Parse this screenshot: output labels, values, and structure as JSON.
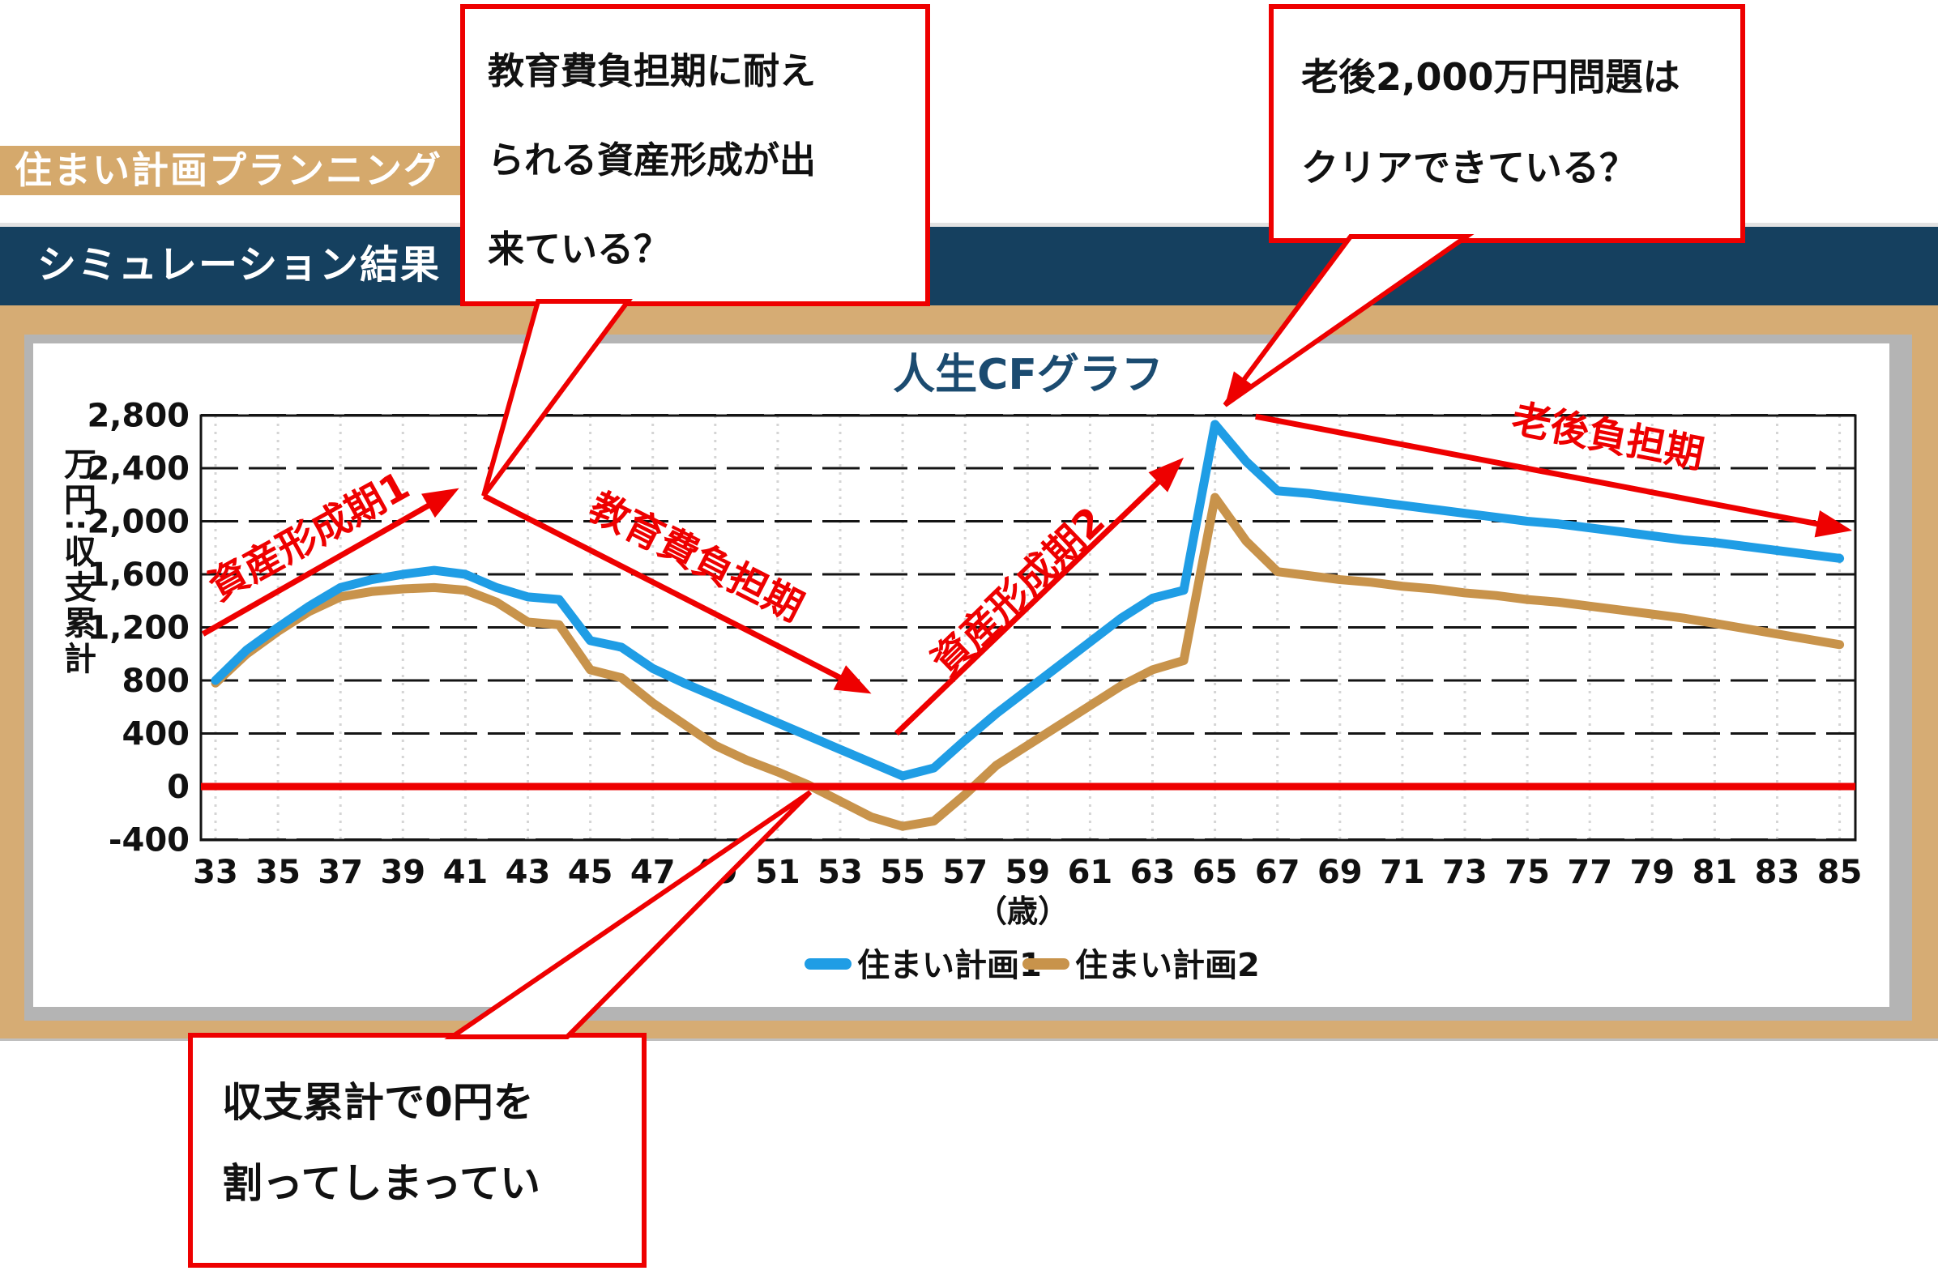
{
  "page": {
    "app_banner": "住まい計画プランニング",
    "section_title": "シミュレーション結果",
    "colors": {
      "banner_tan": "#d5a96c",
      "frame_tan": "#d6ac74",
      "navy_band": "#15405f",
      "title_navy": "#1b4b70",
      "accent_red": "#ee0000",
      "border_grey": "#b4b4b4",
      "grid_black": "#141414",
      "grid_dot_grey": "#d5d5d5"
    }
  },
  "callouts": {
    "education": {
      "line1": "教育費負担期に耐え",
      "line2": "られる資産形成が出",
      "line3": "来ている？"
    },
    "retirement": {
      "line1": "老後2,000万円問題は",
      "line2": "クリアできている？"
    },
    "deficit": {
      "line1": "収支累計で0円を",
      "line2": "割ってしまってい"
    }
  },
  "chart_data": {
    "type": "line",
    "title": "人生CFグラフ",
    "xlabel": "（歳）",
    "ylabel": "万円:収支累計",
    "ylim": [
      -400,
      2800
    ],
    "ytick_step": 400,
    "ytick_labels": [
      "2,800",
      "2,400",
      "2,000",
      "1,600",
      "1,200",
      "800",
      "400",
      "0",
      "-400"
    ],
    "xticks": [
      33,
      35,
      37,
      39,
      41,
      43,
      45,
      47,
      49,
      51,
      53,
      55,
      57,
      59,
      61,
      63,
      65,
      67,
      69,
      71,
      73,
      75,
      77,
      79,
      81,
      83,
      85
    ],
    "ages": [
      33,
      34,
      35,
      36,
      37,
      38,
      39,
      40,
      41,
      42,
      43,
      44,
      45,
      46,
      47,
      48,
      49,
      50,
      51,
      52,
      53,
      54,
      55,
      56,
      57,
      58,
      59,
      60,
      61,
      62,
      63,
      64,
      65,
      66,
      67,
      68,
      69,
      70,
      71,
      72,
      73,
      74,
      75,
      76,
      77,
      78,
      79,
      80,
      81,
      82,
      83,
      84,
      85
    ],
    "grid": true,
    "legend_position": "bottom",
    "zero_line": {
      "y": 0,
      "color": "#ee0000"
    },
    "series": [
      {
        "name": "住まい計画1",
        "color": "#1f9de5",
        "values": [
          800,
          1030,
          1200,
          1360,
          1500,
          1560,
          1600,
          1630,
          1600,
          1500,
          1430,
          1410,
          1100,
          1050,
          890,
          780,
          680,
          580,
          480,
          380,
          280,
          180,
          80,
          140,
          350,
          550,
          730,
          910,
          1090,
          1270,
          1420,
          1480,
          2730,
          2450,
          2230,
          2210,
          2180,
          2150,
          2120,
          2090,
          2060,
          2030,
          2000,
          1980,
          1950,
          1920,
          1890,
          1860,
          1840,
          1810,
          1780,
          1750,
          1720
        ]
      },
      {
        "name": "住まい計画2",
        "color": "#c8934b",
        "values": [
          780,
          1000,
          1170,
          1320,
          1430,
          1470,
          1490,
          1500,
          1480,
          1390,
          1240,
          1220,
          880,
          820,
          630,
          470,
          310,
          200,
          110,
          10,
          -110,
          -230,
          -300,
          -260,
          -60,
          160,
          310,
          460,
          610,
          760,
          880,
          950,
          2180,
          1850,
          1620,
          1590,
          1560,
          1540,
          1510,
          1490,
          1460,
          1440,
          1410,
          1390,
          1360,
          1330,
          1300,
          1270,
          1230,
          1190,
          1150,
          1110,
          1070
        ]
      }
    ],
    "annotations": [
      {
        "label": "資産形成期1",
        "x1": 32.6,
        "y1": 1150,
        "x2": 40.8,
        "y2": 2250,
        "label_x": 36.2,
        "label_y": 1800,
        "label_rot": -29
      },
      {
        "label": "教育費負担期",
        "x1": 41.6,
        "y1": 2190,
        "x2": 54.0,
        "y2": 700,
        "label_x": 48.2,
        "label_y": 1640,
        "label_rot": 27
      },
      {
        "label": "資産形成期2",
        "x1": 54.8,
        "y1": 400,
        "x2": 64.0,
        "y2": 2480,
        "label_x": 59.0,
        "label_y": 1400,
        "label_rot": -44
      },
      {
        "label": "老後負担期",
        "x1": 66.3,
        "y1": 2790,
        "x2": 85.4,
        "y2": 1930,
        "label_x": 77.5,
        "label_y": 2540,
        "label_rot": 11
      }
    ]
  }
}
